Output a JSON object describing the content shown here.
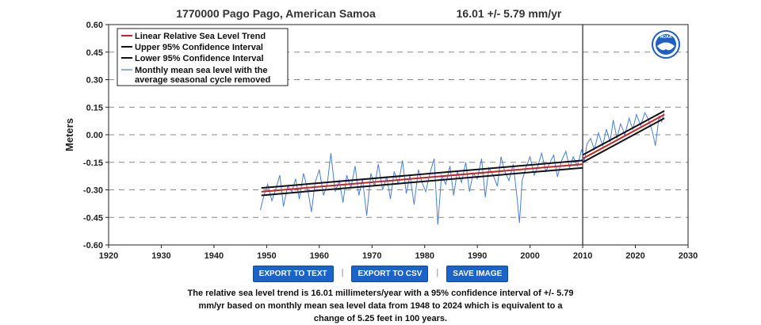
{
  "header": {
    "station": "1770000 Pago Pago, American Samoa",
    "trend": "16.01 +/-  5.79 mm/yr"
  },
  "buttons": {
    "export_text": "EXPORT TO TEXT",
    "export_csv": "EXPORT TO CSV",
    "save_image": "SAVE IMAGE",
    "separator": "|"
  },
  "description": "The relative sea level trend is 16.01 millimeters/year with a 95% confidence interval of +/- 5.79 mm/yr based on monthly mean sea level data from 1948 to 2024 which is equivalent to a change of 5.25 feet in 100 years.",
  "colors": {
    "trend": "#cc2222",
    "confidence": "#111111",
    "monthly": "#4a7fd6",
    "grid": "#888888",
    "noaa_blue": "#1f5fc4"
  },
  "logo": {
    "text": "NOAA"
  },
  "chart_data": {
    "type": "line",
    "title": "1770000 Pago Pago, American Samoa",
    "ylabel": "Meters",
    "xlabel": "",
    "xlim": [
      1920,
      2030
    ],
    "ylim": [
      -0.6,
      0.6
    ],
    "xticks": [
      1920,
      1930,
      1940,
      1950,
      1960,
      1970,
      1980,
      1990,
      2000,
      2010,
      2020,
      2030
    ],
    "yticks": [
      0.6,
      0.45,
      0.3,
      0.15,
      0.0,
      -0.15,
      -0.3,
      -0.45,
      -0.6
    ],
    "ytick_labels": [
      "0.60",
      "0.45",
      "0.30",
      "0.15",
      "0.00",
      "-0.15",
      "-0.30",
      "-0.45",
      "-0.60"
    ],
    "grid": "horizontal dashed",
    "vertical_marker_x": 2010,
    "legend_position": "top-left",
    "legend": [
      "Linear Relative Sea Level Trend",
      "Upper 95% Confidence Interval",
      "Lower 95% Confidence Interval",
      "Monthly mean sea level with the",
      "average seasonal cycle removed"
    ],
    "trend_lines": {
      "segment_before": {
        "x": [
          1949,
          2010
        ],
        "linear": [
          -0.31,
          -0.16
        ],
        "upper": [
          -0.29,
          -0.14
        ],
        "lower": [
          -0.33,
          -0.18
        ]
      },
      "segment_after": {
        "x": [
          2010,
          2025.5
        ],
        "linear": [
          -0.13,
          0.11
        ],
        "upper": [
          -0.11,
          0.13
        ],
        "lower": [
          -0.15,
          0.09
        ]
      }
    },
    "monthly_series": {
      "name": "Monthly mean sea level with the average seasonal cycle removed",
      "x": [
        1948.8,
        1949.5,
        1950.2,
        1951.0,
        1951.8,
        1952.5,
        1953.2,
        1954.0,
        1954.8,
        1955.5,
        1956.2,
        1957.0,
        1957.8,
        1958.5,
        1959.2,
        1960.0,
        1960.8,
        1961.5,
        1962.2,
        1963.0,
        1963.8,
        1964.5,
        1965.2,
        1966.0,
        1966.8,
        1967.5,
        1968.2,
        1969.0,
        1969.8,
        1970.5,
        1971.2,
        1972.0,
        1972.8,
        1973.5,
        1974.2,
        1975.0,
        1975.8,
        1976.5,
        1977.2,
        1978.0,
        1978.8,
        1979.5,
        1980.2,
        1981.0,
        1981.8,
        1982.5,
        1983.2,
        1984.0,
        1984.8,
        1985.5,
        1986.2,
        1987.0,
        1987.8,
        1988.5,
        1989.2,
        1990.0,
        1990.8,
        1991.5,
        1992.2,
        1993.0,
        1993.8,
        1994.5,
        1995.2,
        1996.0,
        1996.8,
        1997.5,
        1998.0,
        1998.5,
        1999.2,
        2000.0,
        2000.8,
        2001.5,
        2002.2,
        2003.0,
        2003.8,
        2004.5,
        2005.2,
        2006.0,
        2006.8,
        2007.5,
        2008.2,
        2009.0,
        2009.8,
        2010.3,
        2010.8,
        2011.5,
        2012.2,
        2013.0,
        2013.8,
        2014.5,
        2015.2,
        2015.8,
        2016.5,
        2017.2,
        2018.0,
        2018.8,
        2019.5,
        2020.2,
        2021.0,
        2021.8,
        2022.5,
        2023.2,
        2023.8,
        2024.5,
        2025.0,
        2025.4
      ],
      "y": [
        -0.41,
        -0.33,
        -0.27,
        -0.36,
        -0.29,
        -0.22,
        -0.39,
        -0.28,
        -0.31,
        -0.24,
        -0.35,
        -0.21,
        -0.3,
        -0.42,
        -0.26,
        -0.19,
        -0.33,
        -0.27,
        -0.1,
        -0.31,
        -0.25,
        -0.37,
        -0.22,
        -0.29,
        -0.17,
        -0.33,
        -0.24,
        -0.44,
        -0.21,
        -0.28,
        -0.16,
        -0.3,
        -0.23,
        -0.35,
        -0.2,
        -0.27,
        -0.14,
        -0.32,
        -0.22,
        -0.38,
        -0.19,
        -0.26,
        -0.31,
        -0.21,
        -0.13,
        -0.49,
        -0.22,
        -0.27,
        -0.17,
        -0.33,
        -0.2,
        -0.26,
        -0.15,
        -0.31,
        -0.21,
        -0.24,
        -0.13,
        -0.34,
        -0.18,
        -0.22,
        -0.28,
        -0.12,
        -0.2,
        -0.25,
        -0.16,
        -0.33,
        -0.48,
        -0.25,
        -0.18,
        -0.12,
        -0.22,
        -0.17,
        -0.1,
        -0.2,
        -0.15,
        -0.11,
        -0.23,
        -0.14,
        -0.09,
        -0.18,
        -0.12,
        -0.17,
        -0.08,
        -0.15,
        -0.05,
        -0.02,
        -0.08,
        0.01,
        -0.06,
        0.03,
        -0.04,
        0.08,
        -0.02,
        0.06,
        0.0,
        0.09,
        0.03,
        0.11,
        0.05,
        0.12,
        0.08,
        0.02,
        -0.06,
        0.1,
        0.07,
        0.12
      ]
    }
  }
}
